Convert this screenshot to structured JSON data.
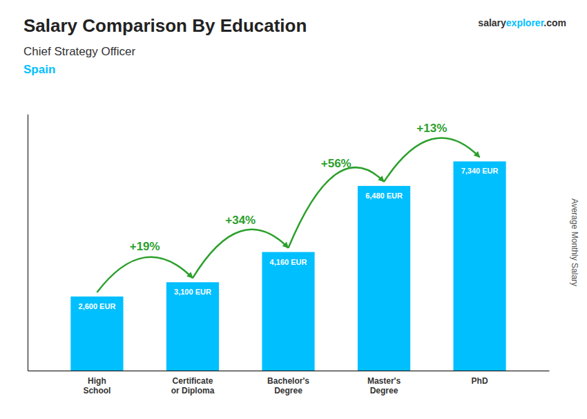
{
  "chart_data": {
    "type": "bar",
    "title": "Salary Comparison By Education",
    "subtitle": "Chief Strategy Officer",
    "country": "Spain",
    "brand": [
      "salary",
      "explorer",
      ".com"
    ],
    "ylabel": "Average Monthly Salary",
    "categories": [
      "High\nSchool",
      "Certificate\nor Diploma",
      "Bachelor's\nDegree",
      "Master's\nDegree",
      "PhD"
    ],
    "values": [
      2600,
      3100,
      4160,
      6480,
      7340
    ],
    "value_labels": [
      "2,600 EUR",
      "3,100 EUR",
      "4,160 EUR",
      "6,480 EUR",
      "7,340 EUR"
    ],
    "change_labels": [
      "+19%",
      "+34%",
      "+56%",
      "+13%"
    ],
    "color": "#00bfff",
    "ylim": [
      0,
      9000
    ],
    "data_labels": true,
    "tick_labels": "x",
    "grid": false
  }
}
